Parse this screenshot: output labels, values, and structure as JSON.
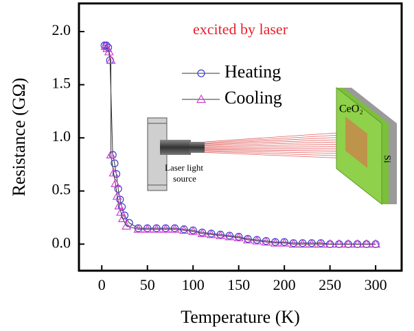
{
  "chart_data": {
    "type": "line",
    "annotation": "excited by laser",
    "annotation_color": "#e8202a",
    "x_label": "Temperature (K)",
    "y_label": "Resistance (GΩ)",
    "xlim": [
      -25,
      328.5
    ],
    "ylim": [
      -0.25,
      2.265
    ],
    "xticks": [
      0,
      50,
      100,
      150,
      200,
      250,
      300
    ],
    "yticks": [
      {
        "value": 0,
        "label": "0.0"
      },
      0.5,
      {
        "value": 1,
        "label": "1.0"
      },
      1.5,
      {
        "value": 2,
        "label": "2.0"
      }
    ],
    "legend": "upper center",
    "line_color": "#333333",
    "series": [
      {
        "name": "Heating",
        "color": "#3b3bd0",
        "marker": "circle",
        "x": [
          3,
          5,
          7,
          9,
          12,
          14,
          16,
          18,
          20,
          22,
          25,
          30,
          40,
          50,
          60,
          70,
          80,
          90,
          100,
          110,
          120,
          130,
          140,
          150,
          160,
          170,
          180,
          190,
          200,
          210,
          220,
          230,
          240,
          250,
          260,
          270,
          280,
          290,
          300
        ],
        "values": [
          1.87,
          1.87,
          1.85,
          1.73,
          0.84,
          0.76,
          0.66,
          0.52,
          0.42,
          0.35,
          0.27,
          0.2,
          0.15,
          0.15,
          0.15,
          0.15,
          0.15,
          0.14,
          0.13,
          0.11,
          0.1,
          0.09,
          0.08,
          0.07,
          0.05,
          0.04,
          0.03,
          0.02,
          0.02,
          0.01,
          0.01,
          0.01,
          0.01,
          0.0,
          0.0,
          0.0,
          0.0,
          0.0,
          0.0
        ]
      },
      {
        "name": "Cooling",
        "color": "#d23cd2",
        "marker": "triangle",
        "x": [
          4,
          6,
          8,
          10,
          10,
          13,
          15,
          17,
          19,
          21,
          23,
          27,
          40,
          50,
          60,
          70,
          80,
          90,
          100,
          110,
          120,
          130,
          140,
          150,
          160,
          170,
          180,
          190,
          200,
          210,
          220,
          230,
          240,
          250,
          260,
          270,
          280,
          290,
          300
        ],
        "values": [
          1.86,
          1.84,
          1.81,
          1.73,
          0.84,
          0.67,
          0.57,
          0.45,
          0.36,
          0.3,
          0.24,
          0.17,
          0.14,
          0.14,
          0.14,
          0.14,
          0.14,
          0.13,
          0.12,
          0.1,
          0.09,
          0.08,
          0.07,
          0.06,
          0.04,
          0.03,
          0.02,
          0.01,
          0.01,
          0.0,
          0.0,
          0.0,
          0.0,
          0.0,
          0.0,
          0.0,
          0.0,
          0.0,
          0.0
        ]
      }
    ],
    "inset": {
      "source_label": [
        "Laser light",
        "source"
      ],
      "film_label": "CeO₂",
      "substrate_label": "Si"
    }
  }
}
